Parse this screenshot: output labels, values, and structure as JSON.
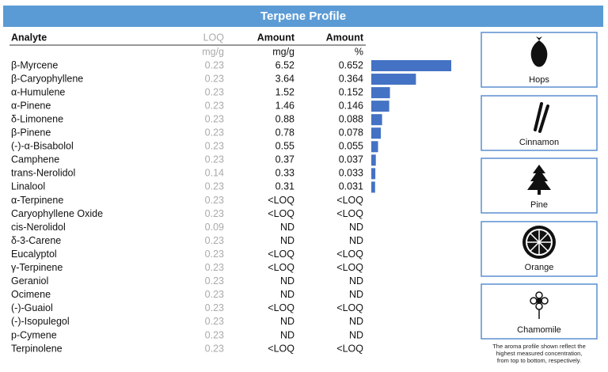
{
  "header": {
    "title": "Terpene Profile"
  },
  "table": {
    "columns": [
      "Analyte",
      "LOQ",
      "Amount",
      "Amount"
    ],
    "units": [
      "mg/g",
      "mg/g",
      "%"
    ],
    "rows": [
      [
        "β-Myrcene",
        0.23,
        6.52,
        0.652
      ],
      [
        "β-Caryophyllene",
        0.23,
        3.64,
        0.364
      ],
      [
        "α-Humulene",
        0.23,
        1.52,
        0.152
      ],
      [
        "α-Pinene",
        0.23,
        1.46,
        0.146
      ],
      [
        "δ-Limonene",
        0.23,
        0.88,
        0.088
      ],
      [
        "β-Pinene",
        0.23,
        0.78,
        0.078
      ],
      [
        "(-)-α-Bisabolol",
        0.23,
        0.55,
        0.055
      ],
      [
        "Camphene",
        0.23,
        0.37,
        0.037
      ],
      [
        "trans-Nerolidol",
        0.14,
        0.33,
        0.033
      ],
      [
        "Linalool",
        0.23,
        0.31,
        0.031
      ],
      [
        "α-Terpinene",
        0.23,
        "<LOQ",
        "<LOQ"
      ],
      [
        "Caryophyllene Oxide",
        0.23,
        "<LOQ",
        "<LOQ"
      ],
      [
        "cis-Nerolidol",
        0.09,
        "ND",
        "ND"
      ],
      [
        "δ-3-Carene",
        0.23,
        "ND",
        "ND"
      ],
      [
        "Eucalyptol",
        0.23,
        "<LOQ",
        "<LOQ"
      ],
      [
        "γ-Terpinene",
        0.23,
        "<LOQ",
        "<LOQ"
      ],
      [
        "Geraniol",
        0.23,
        "ND",
        "ND"
      ],
      [
        "Ocimene",
        0.23,
        "ND",
        "ND"
      ],
      [
        "(-)-Guaiol",
        0.23,
        "<LOQ",
        "<LOQ"
      ],
      [
        "(-)-Isopulegol",
        0.23,
        "ND",
        "ND"
      ],
      [
        "p-Cymene",
        0.23,
        "ND",
        "ND"
      ],
      [
        "Terpinolene",
        0.23,
        "<LOQ",
        "<LOQ"
      ]
    ]
  },
  "bar_color": "#4472c4",
  "aromas": [
    "Hops",
    "Cinnamon",
    "Pine",
    "Orange",
    "Chamomile"
  ],
  "note": [
    "The aroma profile shown reflect the",
    "highest measured concentration,",
    "from top to bottom, respectively."
  ]
}
